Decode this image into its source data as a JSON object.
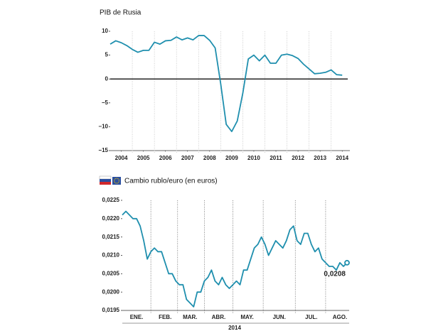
{
  "chart_data": [
    {
      "type": "line",
      "title": "PIB de Rusia",
      "color": "#1f8fae",
      "x": [
        2004,
        2004.25,
        2004.5,
        2004.75,
        2005,
        2005.25,
        2005.5,
        2005.75,
        2006,
        2006.25,
        2006.5,
        2006.75,
        2007,
        2007.25,
        2007.5,
        2007.75,
        2008,
        2008.25,
        2008.5,
        2008.75,
        2009,
        2009.25,
        2009.5,
        2009.75,
        2010,
        2010.25,
        2010.5,
        2010.75,
        2011,
        2011.25,
        2011.5,
        2011.75,
        2012,
        2012.25,
        2012.5,
        2012.75,
        2013,
        2013.25,
        2013.5,
        2013.75,
        2014,
        2014.25,
        2014.5
      ],
      "values": [
        7.3,
        8,
        7.6,
        7,
        6.2,
        5.6,
        6,
        6,
        7.7,
        7.3,
        8,
        8.1,
        8.8,
        8.2,
        8.6,
        8.2,
        9.1,
        9.1,
        8.1,
        6.5,
        -1,
        -9.5,
        -11,
        -8.8,
        -3,
        4.2,
        5,
        3.8,
        5,
        3.3,
        3.3,
        5,
        5.2,
        4.9,
        4.3,
        3.1,
        2.1,
        1.1,
        1.2,
        1.4,
        1.9,
        0.9,
        0.8
      ],
      "xlim": [
        2004,
        2014.75
      ],
      "xticks": [
        {
          "value": 2004.5,
          "label": "2004"
        },
        {
          "value": 2005.5,
          "label": "2005"
        },
        {
          "value": 2006.5,
          "label": "2006"
        },
        {
          "value": 2007.5,
          "label": "2007"
        },
        {
          "value": 2008.5,
          "label": "2008"
        },
        {
          "value": 2009.5,
          "label": "2009"
        },
        {
          "value": 2010.5,
          "label": "2010"
        },
        {
          "value": 2011.5,
          "label": "2011"
        },
        {
          "value": 2012.5,
          "label": "2012"
        },
        {
          "value": 2013.5,
          "label": "2013"
        },
        {
          "value": 2014.5,
          "label": "2014"
        }
      ],
      "ylim": [
        -15,
        10
      ],
      "yticks": [
        10,
        5,
        0,
        {
          "value": -5,
          "label": "−5"
        },
        {
          "value": -10,
          "label": "−10"
        },
        {
          "value": -15,
          "label": "−15"
        }
      ],
      "zero_line": true
    },
    {
      "type": "line",
      "title": "Cambio rublo/euro (en euros)",
      "color": "#1f8fae",
      "xlabel": "2014",
      "categories": [
        null,
        null,
        null,
        null,
        "ENE.",
        null,
        null,
        null,
        null,
        null,
        null,
        null,
        "FEB.",
        null,
        null,
        null,
        null,
        null,
        null,
        "MAR.",
        null,
        null,
        null,
        null,
        null,
        null,
        null,
        "ABR.",
        null,
        null,
        null,
        null,
        null,
        null,
        null,
        "MAY.",
        null,
        null,
        null,
        null,
        null,
        null,
        null,
        null,
        "JUN.",
        null,
        null,
        null,
        null,
        null,
        null,
        null,
        null,
        "JUL.",
        null,
        null,
        null,
        null,
        null,
        null,
        null,
        "AGO.",
        null,
        null
      ],
      "values": [
        0.0221,
        0.0222,
        0.0221,
        0.022,
        0.022,
        0.0218,
        0.0214,
        0.0209,
        0.0211,
        0.0212,
        0.0211,
        0.0211,
        0.0208,
        0.0205,
        0.0205,
        0.0203,
        0.0202,
        0.0202,
        0.0198,
        0.0197,
        0.0196,
        0.02,
        0.02,
        0.0203,
        0.0204,
        0.0206,
        0.0203,
        0.0202,
        0.0204,
        0.0202,
        0.0201,
        0.0202,
        0.0203,
        0.0202,
        0.0206,
        0.0206,
        0.0209,
        0.0212,
        0.0213,
        0.0215,
        0.0213,
        0.021,
        0.0212,
        0.0214,
        0.0213,
        0.0212,
        0.0214,
        0.0217,
        0.0218,
        0.0214,
        0.0213,
        0.0216,
        0.0216,
        0.0213,
        0.0211,
        0.0212,
        0.0209,
        0.0208,
        0.0207,
        0.0207,
        0.0206,
        0.0208,
        0.0207,
        0.0208
      ],
      "value_labels": [
        null,
        null,
        null,
        null,
        null,
        null,
        null,
        null,
        null,
        null,
        null,
        null,
        null,
        null,
        null,
        null,
        null,
        null,
        null,
        null,
        null,
        null,
        null,
        null,
        null,
        null,
        null,
        null,
        null,
        null,
        null,
        null,
        null,
        null,
        null,
        null,
        null,
        null,
        null,
        null,
        null,
        null,
        null,
        null,
        null,
        null,
        null,
        null,
        null,
        null,
        null,
        null,
        null,
        null,
        null,
        null,
        null,
        null,
        null,
        null,
        null,
        null,
        null,
        "0,0208"
      ],
      "ylim": [
        0.0195,
        0.0225
      ],
      "yticks": [
        {
          "value": 0.0225,
          "label": "0,0225"
        },
        {
          "value": 0.022,
          "label": "0,0220"
        },
        {
          "value": 0.0215,
          "label": "0,0215"
        },
        {
          "value": 0.021,
          "label": "0,0210"
        },
        {
          "value": 0.0205,
          "label": "0,0205"
        },
        {
          "value": 0.02,
          "label": "0,0200"
        },
        {
          "value": 0.0195,
          "label": "0,0195"
        }
      ]
    }
  ]
}
